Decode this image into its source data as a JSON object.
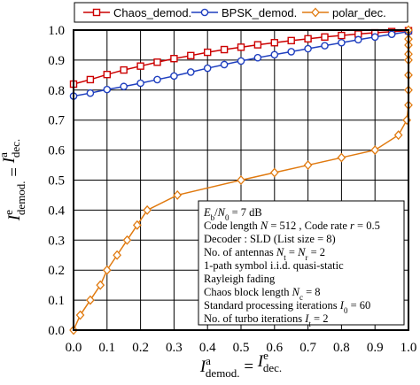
{
  "chart_data": {
    "type": "line",
    "xlim": [
      0,
      1
    ],
    "ylim": [
      0,
      1
    ],
    "x_ticks": [
      "0.0",
      "0.1",
      "0.2",
      "0.3",
      "0.4",
      "0.5",
      "0.6",
      "0.7",
      "0.8",
      "0.9",
      "1.0"
    ],
    "y_ticks": [
      "0.0",
      "0.1",
      "0.2",
      "0.3",
      "0.4",
      "0.5",
      "0.6",
      "0.7",
      "0.8",
      "0.9",
      "1.0"
    ],
    "grid": true,
    "legend_position": "top",
    "xlabel": {
      "lead": "I",
      "sup1": "a",
      "sub1": "demod.",
      "eq": " = ",
      "mid": "I",
      "sup2": "e",
      "sub2": "dec."
    },
    "ylabel": {
      "lead": "I",
      "sup1": "e",
      "sub1": "demod.",
      "eq": " = ",
      "mid": "I",
      "sup2": "a",
      "sub2": "dec."
    },
    "series": [
      {
        "name": "Chaos_demod.",
        "color": "#cc0000",
        "marker": "square",
        "x": [
          0.0,
          0.05,
          0.1,
          0.15,
          0.2,
          0.25,
          0.3,
          0.35,
          0.4,
          0.45,
          0.5,
          0.55,
          0.6,
          0.65,
          0.7,
          0.75,
          0.8,
          0.85,
          0.9,
          0.95,
          1.0
        ],
        "y": [
          0.82,
          0.835,
          0.852,
          0.867,
          0.88,
          0.893,
          0.905,
          0.915,
          0.926,
          0.935,
          0.943,
          0.951,
          0.958,
          0.965,
          0.971,
          0.977,
          0.982,
          0.987,
          0.991,
          0.995,
          0.998
        ]
      },
      {
        "name": "BPSK_demod.",
        "color": "#1f3fbf",
        "marker": "circle",
        "x": [
          0.0,
          0.05,
          0.1,
          0.15,
          0.2,
          0.25,
          0.3,
          0.35,
          0.4,
          0.45,
          0.5,
          0.55,
          0.6,
          0.65,
          0.7,
          0.75,
          0.8,
          0.85,
          0.9,
          0.95,
          1.0
        ],
        "y": [
          0.78,
          0.79,
          0.802,
          0.812,
          0.823,
          0.835,
          0.847,
          0.86,
          0.873,
          0.885,
          0.897,
          0.908,
          0.918,
          0.928,
          0.938,
          0.948,
          0.958,
          0.968,
          0.977,
          0.986,
          0.995
        ]
      },
      {
        "name": "polar_dec.",
        "color": "#e07a10",
        "marker": "diamond",
        "x": [
          0.0,
          0.02,
          0.05,
          0.08,
          0.1,
          0.13,
          0.16,
          0.19,
          0.22,
          0.31,
          0.5,
          0.6,
          0.7,
          0.8,
          0.9,
          0.97,
          0.995,
          1.0,
          1.0,
          1.0,
          1.0,
          1.0,
          1.0,
          1.0,
          1.0
        ],
        "y": [
          0.0,
          0.05,
          0.1,
          0.15,
          0.2,
          0.25,
          0.3,
          0.35,
          0.4,
          0.45,
          0.5,
          0.525,
          0.55,
          0.575,
          0.6,
          0.65,
          0.7,
          0.75,
          0.8,
          0.85,
          0.9,
          0.92,
          0.95,
          0.97,
          1.0
        ]
      }
    ],
    "info_box": [
      {
        "parts": [
          {
            "t": "E",
            "i": true
          },
          {
            "t": "b",
            "sub": true
          },
          {
            "t": "/"
          },
          {
            "t": "N",
            "i": true
          },
          {
            "t": "0",
            "sub": true
          },
          {
            "t": " = 7 dB"
          }
        ]
      },
      {
        "parts": [
          {
            "t": "Code length "
          },
          {
            "t": "N",
            "i": true
          },
          {
            "t": " = 512 , Code rate "
          },
          {
            "t": "r",
            "i": true
          },
          {
            "t": " = 0.5"
          }
        ]
      },
      {
        "parts": [
          {
            "t": "Decoder : SLD (List size = 8)"
          }
        ]
      },
      {
        "parts": [
          {
            "t": "No. of antennas "
          },
          {
            "t": "N",
            "i": true
          },
          {
            "t": "t",
            "sub": true
          },
          {
            "t": " = "
          },
          {
            "t": "N",
            "i": true
          },
          {
            "t": "r",
            "sub": true
          },
          {
            "t": " = 2"
          }
        ]
      },
      {
        "parts": [
          {
            "t": "1-path symbol i.i.d. quasi-static"
          }
        ]
      },
      {
        "parts": [
          {
            "t": "Rayleigh fading"
          }
        ]
      },
      {
        "parts": [
          {
            "t": "Chaos block length "
          },
          {
            "t": "N",
            "i": true
          },
          {
            "t": "c",
            "sub": true
          },
          {
            "t": " = 8"
          }
        ]
      },
      {
        "parts": [
          {
            "t": "Standard processing iterations "
          },
          {
            "t": "I",
            "i": true
          },
          {
            "t": "0",
            "sub": true
          },
          {
            "t": " = 60"
          }
        ]
      },
      {
        "parts": [
          {
            "t": "No. of turbo iterations "
          },
          {
            "t": "I",
            "i": true
          },
          {
            "t": "t",
            "sub": true
          },
          {
            "t": " = 2"
          }
        ]
      }
    ]
  }
}
